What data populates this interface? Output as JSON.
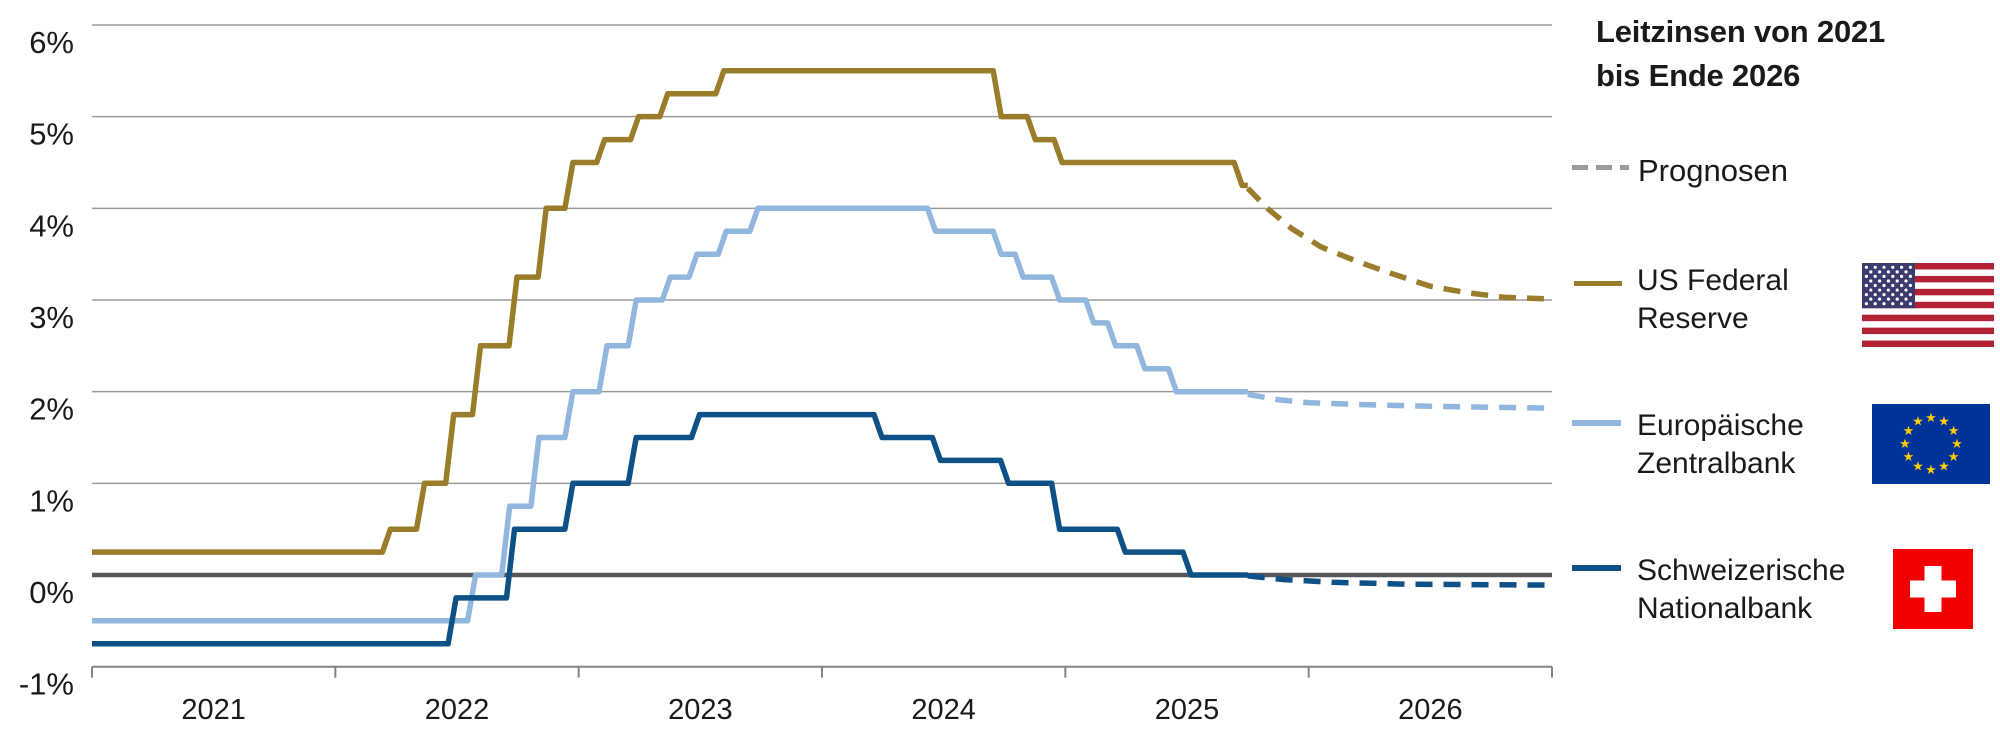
{
  "header": {
    "title_line1": "Leitzinsen von 2021",
    "title_line2": "bis Ende 2026"
  },
  "legend": {
    "prognosen_label": "Prognosen",
    "prognosen_color": "#9b9b9b",
    "items": [
      {
        "label_line1": "US Federal",
        "label_line2": "Reserve",
        "color": "#9a7c2b",
        "icon": "us-flag-icon"
      },
      {
        "label_line1": "Europäische",
        "label_line2": "Zentralbank",
        "color": "#92b7de",
        "icon": "eu-flag-icon"
      },
      {
        "label_line1": "Schweizerische",
        "label_line2": "Nationalbank",
        "color": "#0d5187",
        "icon": "ch-flag-icon"
      }
    ]
  },
  "icons": {
    "us_flag": {
      "canton": "#3c3b6e",
      "stripe": "#b22234",
      "stars": "#ffffff",
      "field": "#ffffff"
    },
    "eu_flag": {
      "field": "#003399",
      "stars": "#ffcc00"
    },
    "ch_flag": {
      "field": "#f40000",
      "cross": "#ffffff"
    }
  },
  "chart_data": {
    "type": "line",
    "title": "Leitzinsen von 2021 bis Ende 2026",
    "legend_position": "right",
    "grid": "horizontal",
    "forecast_label": "Prognosen",
    "forecast_style": "dashed",
    "x_axis": {
      "range": [
        2021,
        2027
      ],
      "tick_years": [
        2021,
        2022,
        2023,
        2024,
        2025,
        2026,
        2027
      ],
      "year_labels": [
        "2021",
        "2022",
        "2023",
        "2024",
        "2025",
        "2026"
      ]
    },
    "y_axis": {
      "range": [
        -1,
        6
      ],
      "zero_line": true,
      "ticks": [
        {
          "value": 6,
          "label": "6%"
        },
        {
          "value": 5,
          "label": "5%"
        },
        {
          "value": 4,
          "label": "4%"
        },
        {
          "value": 3,
          "label": "3%"
        },
        {
          "value": 2,
          "label": "2%"
        },
        {
          "value": 1,
          "label": "1%"
        },
        {
          "value": 0,
          "label": "0%"
        },
        {
          "value": -1,
          "label": "-1%"
        }
      ]
    },
    "axis_colors": {
      "grid": "#9b9b9b",
      "zero_line": "#58585a",
      "axis": "#848484",
      "text": "#1a1a1a"
    },
    "series": [
      {
        "name": "US Federal Reserve",
        "color": "#9a7c2b",
        "unit": "%",
        "steps": [
          [
            2021.0,
            0.25
          ],
          [
            2022.21,
            0.5
          ],
          [
            2022.35,
            1.0
          ],
          [
            2022.47,
            1.75
          ],
          [
            2022.58,
            2.5
          ],
          [
            2022.73,
            3.25
          ],
          [
            2022.85,
            4.0
          ],
          [
            2022.96,
            4.5
          ],
          [
            2023.09,
            4.75
          ],
          [
            2023.23,
            5.0
          ],
          [
            2023.35,
            5.25
          ],
          [
            2023.58,
            5.5
          ],
          [
            2024.72,
            5.0
          ],
          [
            2024.86,
            4.75
          ],
          [
            2024.97,
            4.5
          ],
          [
            2025.71,
            4.25
          ]
        ],
        "solid_until": 2025.75,
        "forecast": [
          [
            2025.75,
            4.22
          ],
          [
            2025.83,
            4.0
          ],
          [
            2025.93,
            3.78
          ],
          [
            2026.05,
            3.58
          ],
          [
            2026.2,
            3.42
          ],
          [
            2026.35,
            3.28
          ],
          [
            2026.5,
            3.15
          ],
          [
            2026.65,
            3.08
          ],
          [
            2026.8,
            3.03
          ],
          [
            2027.0,
            3.01
          ]
        ]
      },
      {
        "name": "Europäische Zentralbank",
        "color": "#92b7de",
        "unit": "%",
        "steps": [
          [
            2021.0,
            -0.5
          ],
          [
            2022.56,
            0.0
          ],
          [
            2022.7,
            0.75
          ],
          [
            2022.82,
            1.5
          ],
          [
            2022.96,
            2.0
          ],
          [
            2023.1,
            2.5
          ],
          [
            2023.22,
            3.0
          ],
          [
            2023.36,
            3.25
          ],
          [
            2023.47,
            3.5
          ],
          [
            2023.59,
            3.75
          ],
          [
            2023.72,
            4.0
          ],
          [
            2024.45,
            3.75
          ],
          [
            2024.72,
            3.5
          ],
          [
            2024.81,
            3.25
          ],
          [
            2024.96,
            3.0
          ],
          [
            2025.1,
            2.75
          ],
          [
            2025.19,
            2.5
          ],
          [
            2025.31,
            2.25
          ],
          [
            2025.44,
            2.0
          ]
        ],
        "solid_until": 2025.75,
        "forecast": [
          [
            2025.75,
            1.97
          ],
          [
            2025.88,
            1.91
          ],
          [
            2026.0,
            1.88
          ],
          [
            2026.2,
            1.86
          ],
          [
            2026.5,
            1.84
          ],
          [
            2027.0,
            1.82
          ]
        ]
      },
      {
        "name": "Schweizerische Nationalbank",
        "color": "#0d5187",
        "unit": "%",
        "steps": [
          [
            2021.0,
            -0.75
          ],
          [
            2022.48,
            -0.25
          ],
          [
            2022.72,
            0.5
          ],
          [
            2022.96,
            1.0
          ],
          [
            2023.22,
            1.5
          ],
          [
            2023.48,
            1.75
          ],
          [
            2024.23,
            1.5
          ],
          [
            2024.47,
            1.25
          ],
          [
            2024.75,
            1.0
          ],
          [
            2024.96,
            0.5
          ],
          [
            2025.23,
            0.25
          ],
          [
            2025.5,
            0.0
          ]
        ],
        "solid_until": 2025.75,
        "forecast": [
          [
            2025.75,
            -0.01
          ],
          [
            2025.9,
            -0.05
          ],
          [
            2026.1,
            -0.08
          ],
          [
            2026.4,
            -0.1
          ],
          [
            2027.0,
            -0.11
          ]
        ]
      }
    ]
  }
}
